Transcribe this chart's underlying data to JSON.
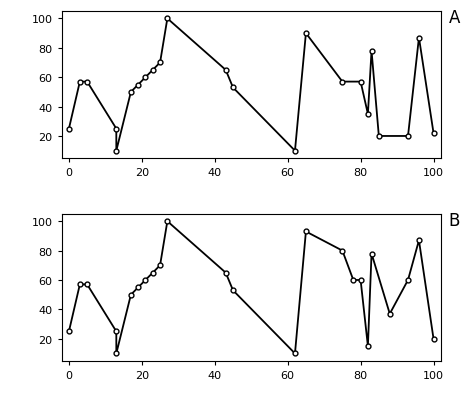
{
  "panel_A": {
    "x": [
      0,
      3,
      5,
      13,
      13,
      17,
      19,
      21,
      23,
      25,
      27,
      43,
      45,
      62,
      65,
      75,
      80,
      82,
      83,
      85,
      93,
      96,
      100
    ],
    "y": [
      25,
      57,
      57,
      25,
      10,
      50,
      55,
      60,
      65,
      70,
      100,
      65,
      53,
      10,
      90,
      57,
      57,
      35,
      78,
      20,
      20,
      87,
      22
    ]
  },
  "panel_B": {
    "x": [
      0,
      3,
      5,
      13,
      13,
      17,
      19,
      21,
      23,
      25,
      27,
      43,
      45,
      62,
      65,
      75,
      78,
      80,
      82,
      83,
      88,
      93,
      96,
      100
    ],
    "y": [
      25,
      57,
      57,
      25,
      10,
      50,
      55,
      60,
      65,
      70,
      100,
      65,
      53,
      10,
      93,
      80,
      60,
      60,
      15,
      78,
      37,
      60,
      87,
      20
    ]
  },
  "xlim": [
    -2,
    102
  ],
  "ylim": [
    5,
    105
  ],
  "xticks": [
    0,
    20,
    40,
    60,
    80,
    100
  ],
  "yticks": [
    20,
    40,
    60,
    80,
    100
  ],
  "label_A": "A",
  "label_B": "B",
  "bg_color": "#ffffff"
}
